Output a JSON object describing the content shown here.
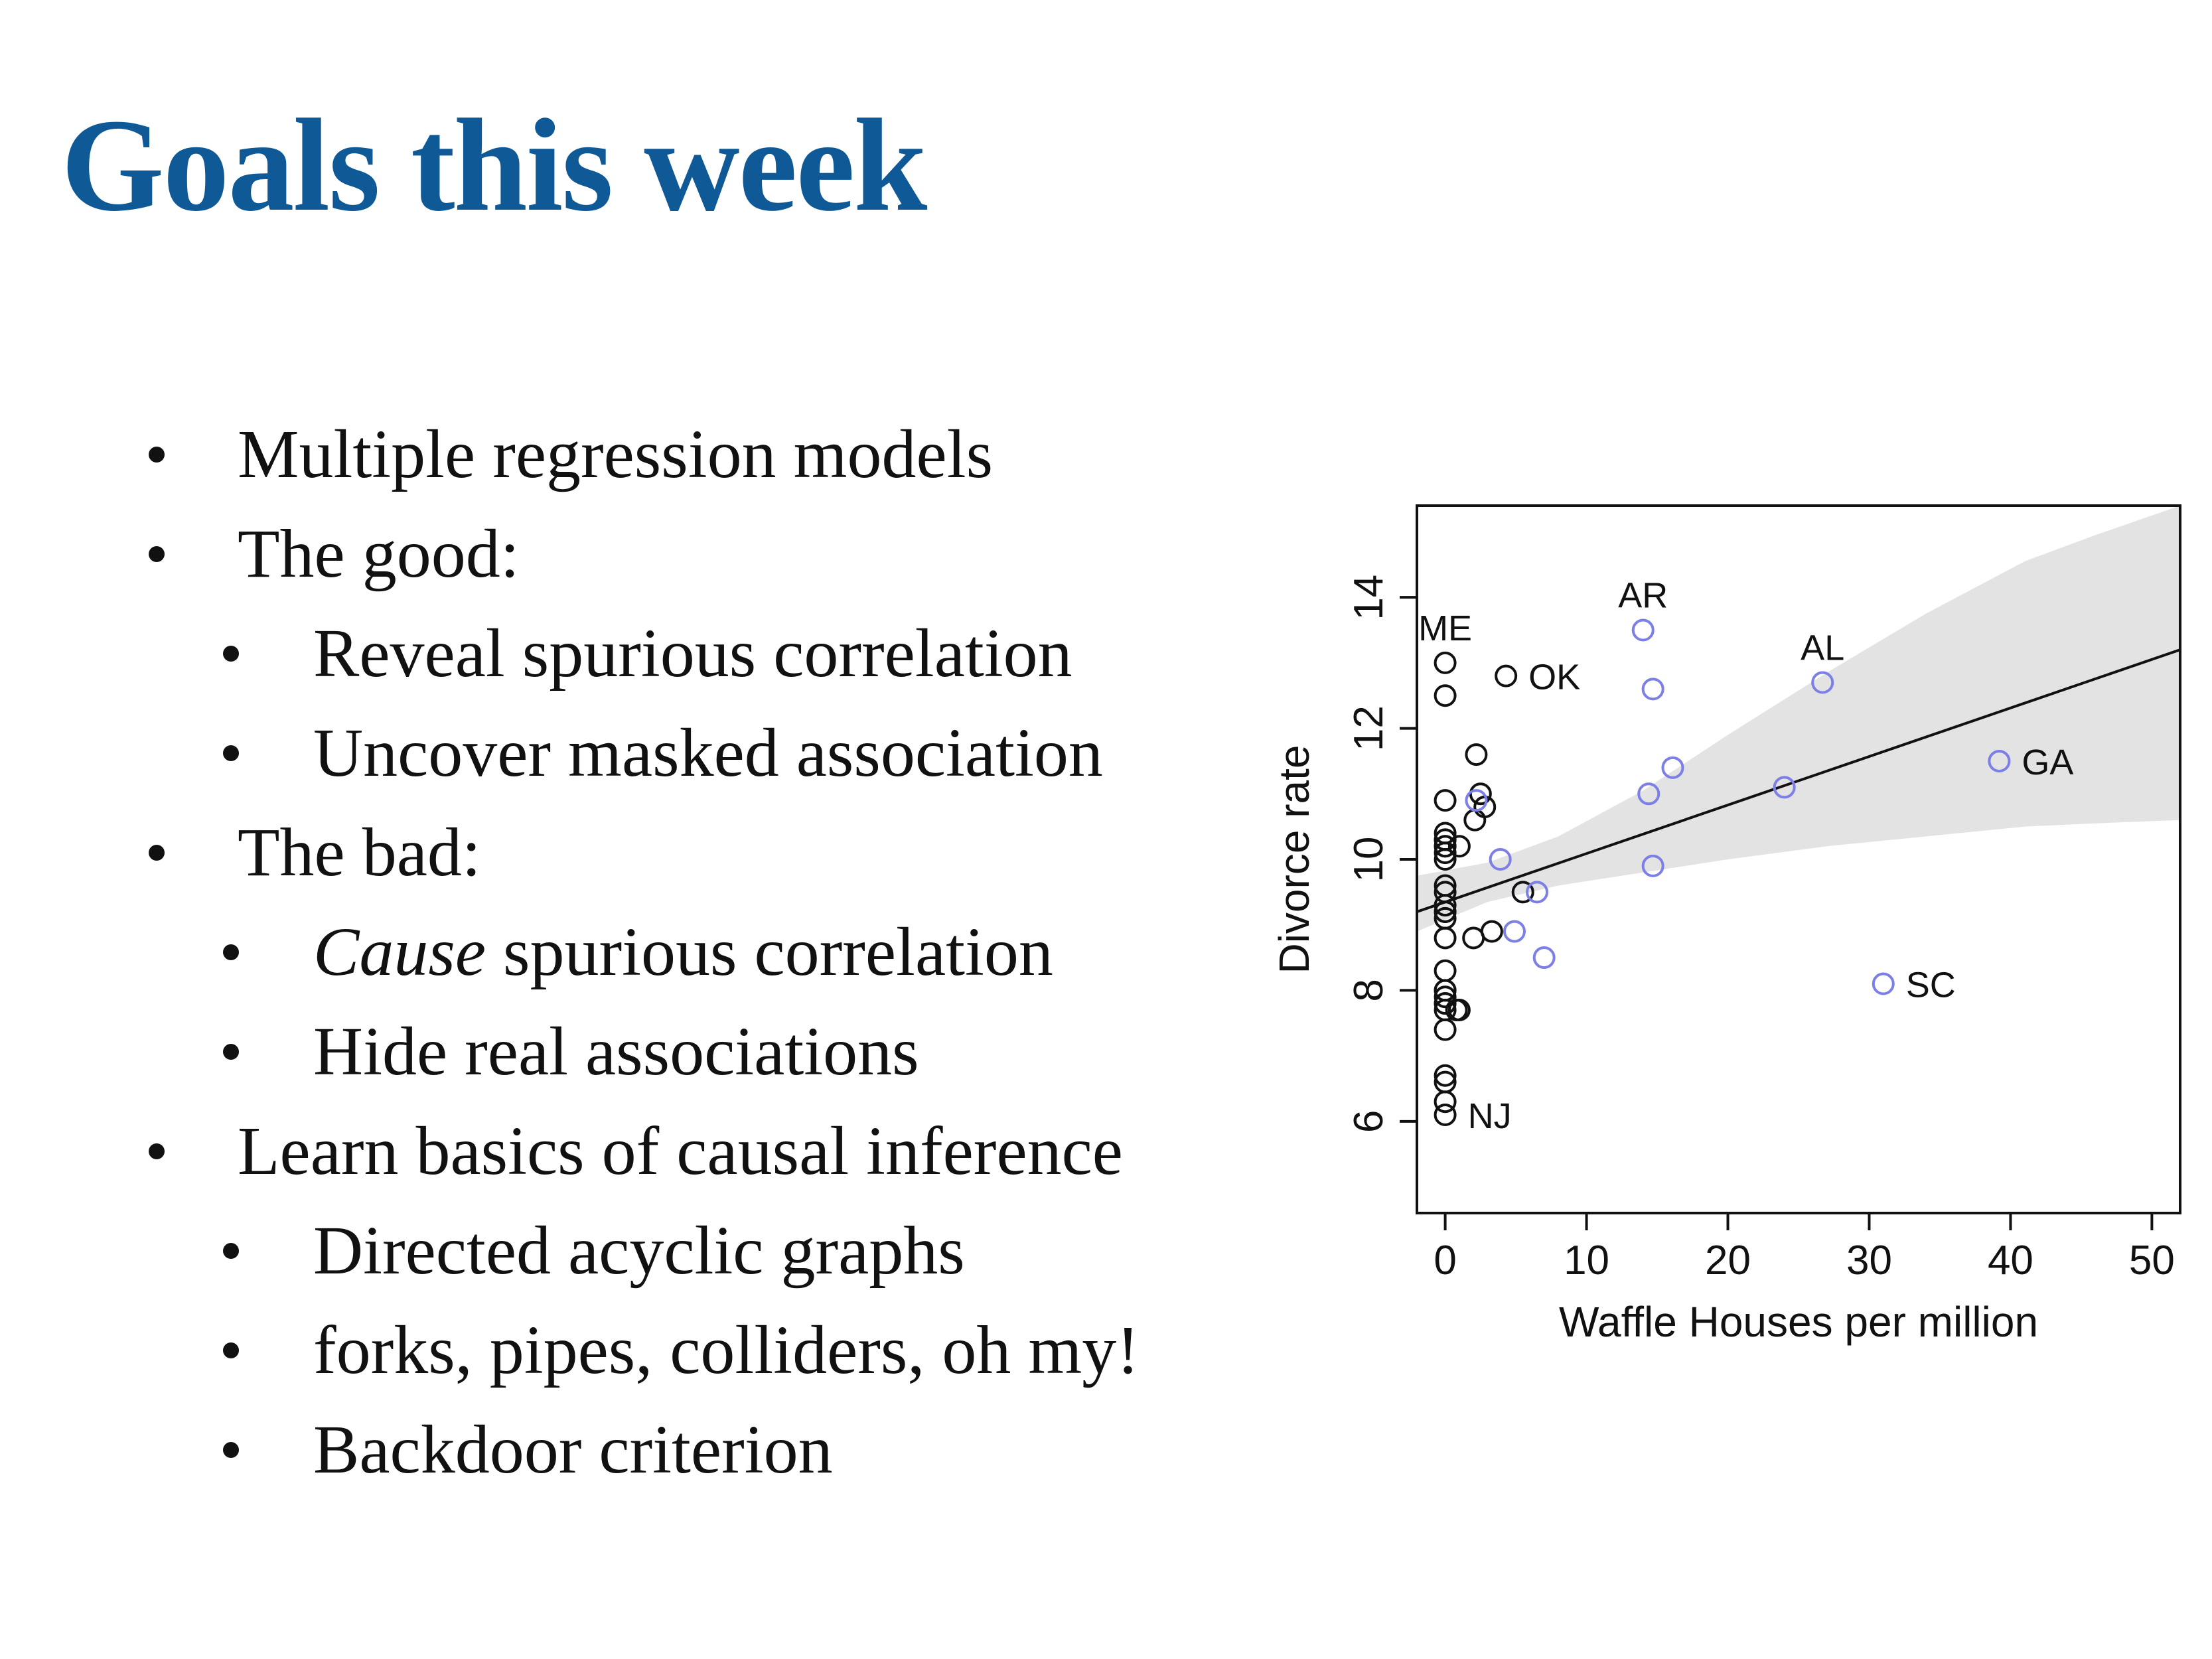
{
  "slide": {
    "title": "Goals this week",
    "bullets": [
      {
        "level": 1,
        "text": "Multiple regression models"
      },
      {
        "level": 1,
        "text": "The good:"
      },
      {
        "level": 2,
        "text": "Reveal spurious correlation"
      },
      {
        "level": 2,
        "text": "Uncover masked association"
      },
      {
        "level": 1,
        "text": "The bad:"
      },
      {
        "level": 2,
        "emphasis": "Cause",
        "text": " spurious correlation"
      },
      {
        "level": 2,
        "text": "Hide real associations"
      },
      {
        "level": 1,
        "text": "Learn basics of causal inference"
      },
      {
        "level": 2,
        "text": "Directed acyclic graphs"
      },
      {
        "level": 2,
        "text": "forks, pipes, colliders, oh my!"
      },
      {
        "level": 2,
        "text": "Backdoor criterion"
      }
    ]
  },
  "colors": {
    "title": "#0f5a96",
    "text": "#111111",
    "point_black": "#111111",
    "point_blue": "#7b7fe6",
    "band": "#e3e3e3"
  },
  "chart_data": {
    "type": "scatter",
    "title": "",
    "xlabel": "Waffle Houses per million",
    "ylabel": "Divorce rate",
    "xlim": [
      -2,
      52
    ],
    "ylim": [
      4.6,
      15.4
    ],
    "xticks": [
      0,
      10,
      20,
      30,
      40,
      50
    ],
    "yticks": [
      6,
      8,
      10,
      12,
      14
    ],
    "grid": false,
    "legend": "none",
    "regression_line": {
      "x": [
        -2,
        52
      ],
      "y": [
        9.2,
        13.2
      ]
    },
    "interval_band": {
      "x": [
        -2,
        3,
        8,
        14,
        20,
        27,
        34,
        41,
        46,
        52
      ],
      "lower": [
        8.9,
        9.35,
        9.6,
        9.8,
        10.0,
        10.2,
        10.35,
        10.5,
        10.55,
        10.6
      ],
      "upper": [
        9.75,
        9.95,
        10.35,
        11.05,
        11.9,
        12.85,
        13.75,
        14.55,
        14.95,
        15.4
      ]
    },
    "series": [
      {
        "group": "black",
        "x": [
          0,
          0,
          0,
          0,
          0,
          0,
          0,
          0,
          0,
          0,
          0,
          0,
          0,
          0,
          0,
          0,
          0,
          0,
          0,
          0,
          0,
          0,
          0,
          0,
          0,
          0,
          0,
          0,
          4.3,
          2.2,
          2.5,
          2.8,
          2.1,
          1.0,
          1.0,
          5.5,
          3.3,
          2.0,
          0.8,
          0.0
        ],
        "y": [
          13.0,
          12.5,
          10.9,
          10.4,
          10.3,
          10.2,
          10.1,
          10.0,
          9.6,
          9.3,
          9.2,
          9.1,
          8.8,
          8.3,
          8.0,
          7.9,
          7.8,
          7.7,
          7.4,
          6.7,
          6.6,
          6.3,
          6.1,
          9.5,
          10.2,
          10.3,
          8.0,
          7.8,
          12.8,
          11.6,
          11.0,
          10.8,
          10.6,
          10.2,
          7.7,
          9.5,
          8.9,
          8.8,
          7.7,
          9.2
        ]
      },
      {
        "group": "blue",
        "x": [
          14.0,
          14.7,
          26.7,
          39.2,
          16.1,
          14.4,
          24.0,
          2.2,
          3.9,
          14.7,
          6.5,
          4.9,
          7.0,
          31.0
        ],
        "y": [
          13.5,
          12.6,
          12.7,
          11.5,
          11.4,
          11.0,
          11.1,
          10.9,
          10.0,
          9.9,
          9.5,
          8.9,
          8.5,
          8.1
        ]
      }
    ],
    "point_labels": [
      {
        "text": "ME",
        "x": 0.0,
        "y": 13.0,
        "pos": "above"
      },
      {
        "text": "OK",
        "x": 4.3,
        "y": 12.8,
        "pos": "right"
      },
      {
        "text": "AR",
        "x": 14.0,
        "y": 13.5,
        "pos": "above"
      },
      {
        "text": "AL",
        "x": 26.7,
        "y": 12.7,
        "pos": "above"
      },
      {
        "text": "GA",
        "x": 39.2,
        "y": 11.5,
        "pos": "right"
      },
      {
        "text": "SC",
        "x": 31.0,
        "y": 8.1,
        "pos": "right"
      },
      {
        "text": "NJ",
        "x": 0.0,
        "y": 6.1,
        "pos": "right"
      }
    ]
  }
}
